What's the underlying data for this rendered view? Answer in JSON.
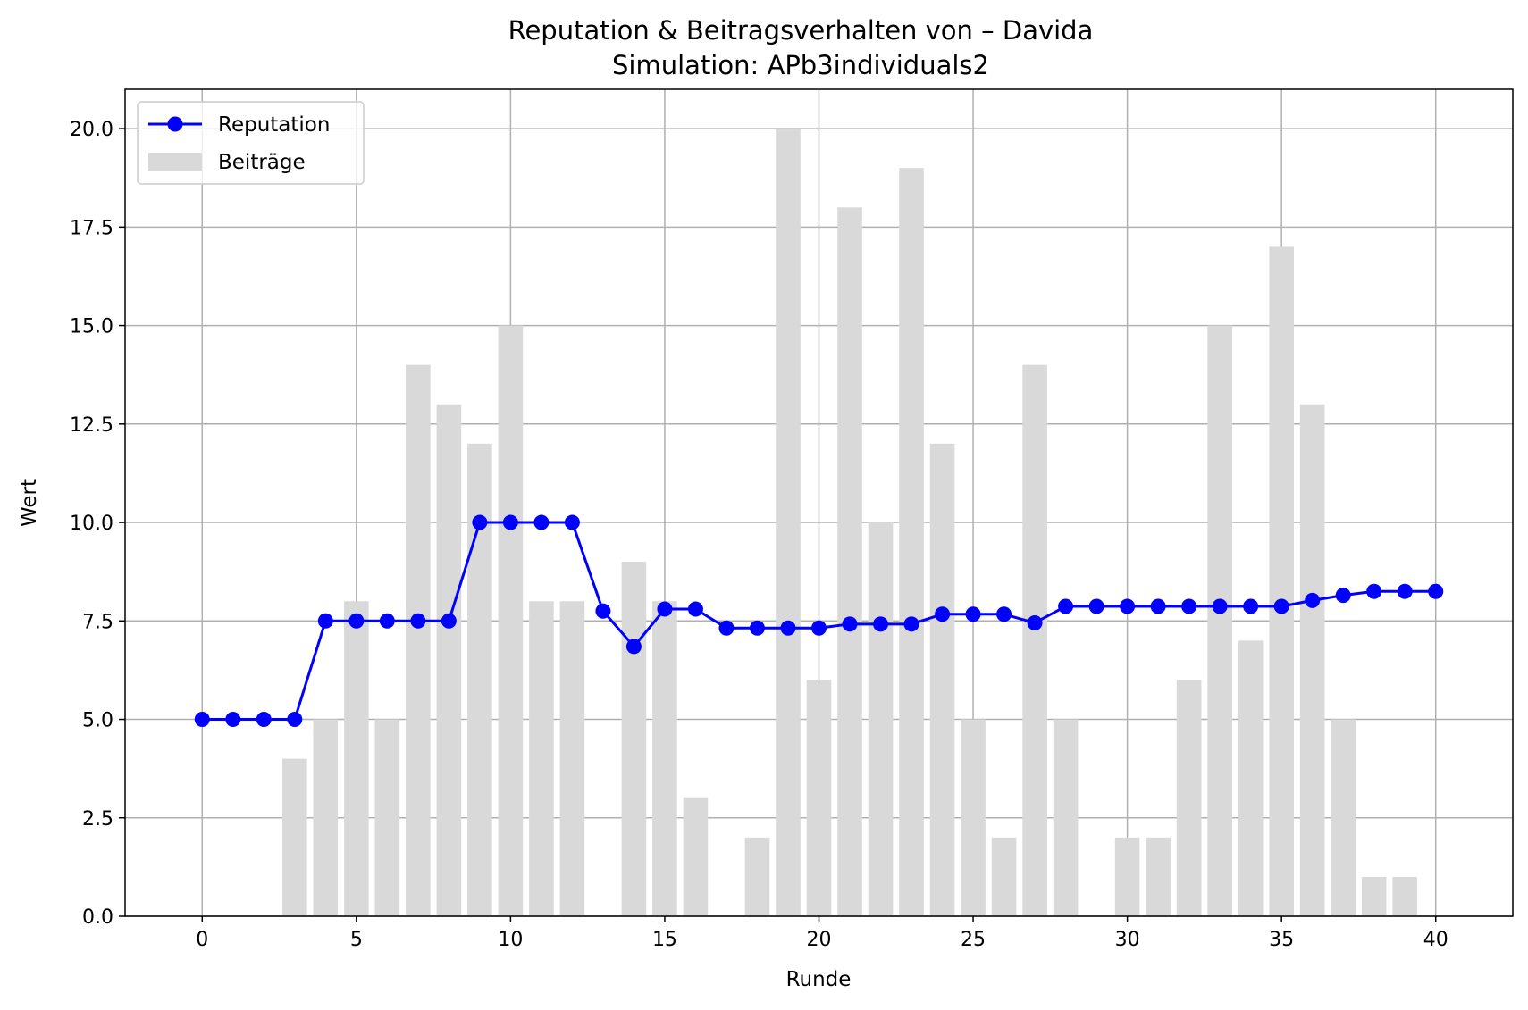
{
  "chart_data": {
    "type": "bar+line",
    "title": "Reputation & Beitragsverhalten von – Davida",
    "subtitle": "Simulation: APb3individuals2",
    "xlabel": "Runde",
    "ylabel": "Wert",
    "xlim": [
      -2.5,
      42.5
    ],
    "ylim": [
      0,
      21
    ],
    "xticks": [
      0,
      5,
      10,
      15,
      20,
      25,
      30,
      35,
      40
    ],
    "yticks": [
      0.0,
      2.5,
      5.0,
      7.5,
      10.0,
      12.5,
      15.0,
      17.5,
      20.0
    ],
    "xtick_labels": [
      "0",
      "5",
      "10",
      "15",
      "20",
      "25",
      "30",
      "35",
      "40"
    ],
    "ytick_labels": [
      "0.0",
      "2.5",
      "5.0",
      "7.5",
      "10.0",
      "12.5",
      "15.0",
      "17.5",
      "20.0"
    ],
    "grid": true,
    "legend_position": "top-left",
    "series": [
      {
        "name": "Reputation",
        "kind": "line",
        "color": "#0000ff",
        "x": [
          0,
          1,
          2,
          3,
          4,
          5,
          6,
          7,
          8,
          9,
          10,
          11,
          12,
          13,
          14,
          15,
          16,
          17,
          18,
          19,
          20,
          21,
          22,
          23,
          24,
          25,
          26,
          27,
          28,
          29,
          30,
          31,
          32,
          33,
          34,
          35,
          36,
          37,
          38,
          39,
          40
        ],
        "values": [
          5.0,
          5.0,
          5.0,
          5.0,
          7.5,
          7.5,
          7.5,
          7.5,
          7.5,
          10.0,
          10.0,
          10.0,
          10.0,
          7.75,
          6.85,
          7.8,
          7.8,
          7.32,
          7.32,
          7.32,
          7.32,
          7.42,
          7.42,
          7.42,
          7.67,
          7.67,
          7.67,
          7.45,
          7.87,
          7.87,
          7.87,
          7.87,
          7.87,
          7.87,
          7.87,
          7.87,
          8.02,
          8.15,
          8.25,
          8.25,
          8.25
        ]
      },
      {
        "name": "Beiträge",
        "kind": "bar",
        "color": "#d9d9d9",
        "x": [
          0,
          1,
          2,
          3,
          4,
          5,
          6,
          7,
          8,
          9,
          10,
          11,
          12,
          13,
          14,
          15,
          16,
          17,
          18,
          19,
          20,
          21,
          22,
          23,
          24,
          25,
          26,
          27,
          28,
          29,
          30,
          31,
          32,
          33,
          34,
          35,
          36,
          37,
          38,
          39
        ],
        "values": [
          0,
          0,
          0,
          4,
          5,
          8,
          5,
          14,
          13,
          12,
          15,
          8,
          8,
          0,
          9,
          8,
          3,
          0,
          2,
          20,
          6,
          18,
          10,
          19,
          12,
          5,
          2,
          14,
          5,
          0,
          2,
          2,
          6,
          15,
          7,
          17,
          13,
          5,
          1,
          1
        ]
      }
    ]
  }
}
